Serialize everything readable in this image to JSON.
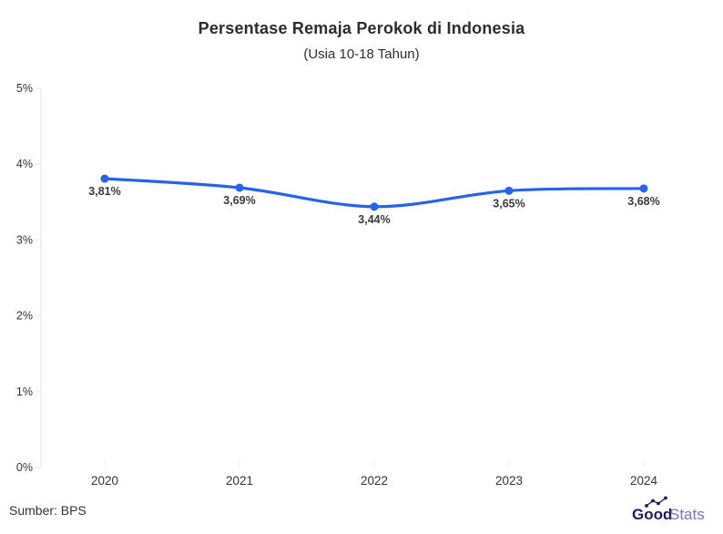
{
  "header": {
    "title": "Persentase Remaja Perokok di Indonesia",
    "subtitle": "(Usia 10-18 Tahun)"
  },
  "footer": {
    "source": "Sumber: BPS",
    "logo_bold": "Good",
    "logo_light": "Stats"
  },
  "colors": {
    "line": "#2563eb",
    "point": "#2563eb",
    "value_label": "#3a3a3a",
    "tick_label": "#333333",
    "axis": "#ececec",
    "logo_dark": "#1e1b61",
    "logo_light": "#7577b9"
  },
  "chart_data": {
    "type": "line",
    "title": "Persentase Remaja Perokok di Indonesia",
    "subtitle": "(Usia 10-18 Tahun)",
    "categories": [
      "2020",
      "2021",
      "2022",
      "2023",
      "2024"
    ],
    "values": [
      3.81,
      3.69,
      3.44,
      3.65,
      3.68
    ],
    "value_labels": [
      "3,81%",
      "3,69%",
      "3,44%",
      "3,65%",
      "3,68%"
    ],
    "xlabel": "",
    "ylabel": "",
    "ylim": [
      0,
      5
    ],
    "yticks": [
      0,
      1,
      2,
      3,
      4,
      5
    ],
    "ytick_labels": [
      "0%",
      "1%",
      "2%",
      "3%",
      "4%",
      "5%"
    ],
    "grid": false,
    "legend": false,
    "source": "Sumber: BPS"
  }
}
